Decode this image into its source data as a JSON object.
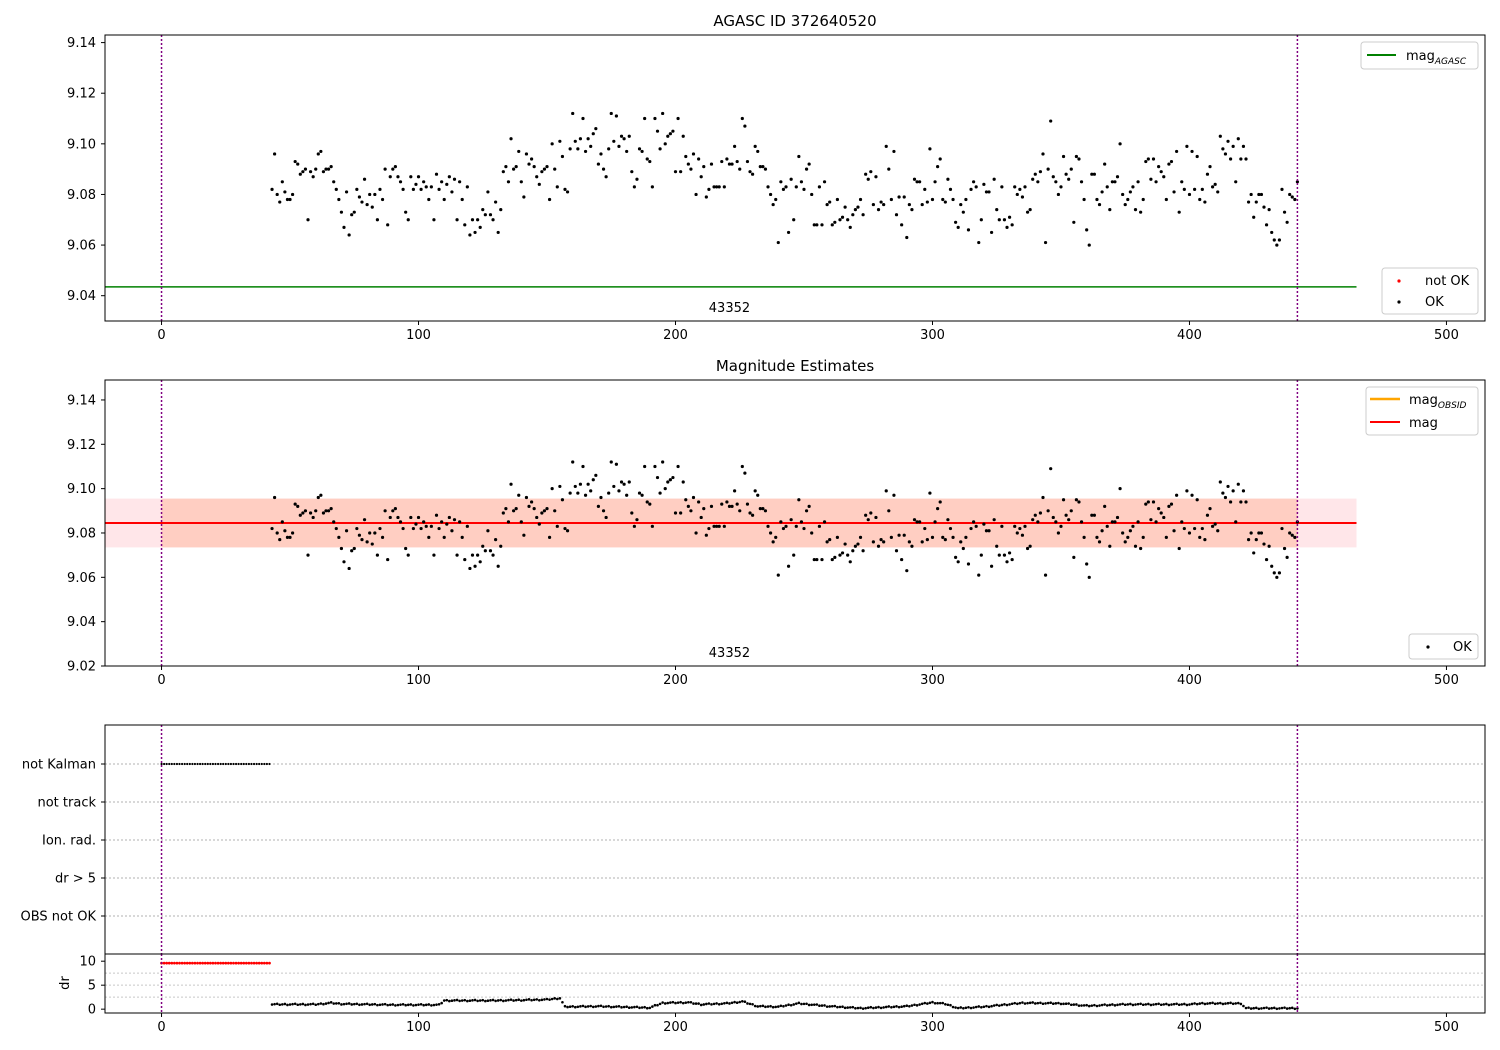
{
  "chart_data": [
    {
      "type": "scatter",
      "title": "AGASC ID 372640520",
      "xlim": [
        -22,
        515
      ],
      "ylim": [
        9.03,
        9.143
      ],
      "xticks": [
        0,
        100,
        200,
        300,
        400,
        500
      ],
      "yticks": [
        "9.04",
        "9.06",
        "9.08",
        "9.10",
        "9.12",
        "9.14"
      ],
      "ytick_values": [
        9.04,
        9.06,
        9.08,
        9.1,
        9.12,
        9.14
      ],
      "obs_boundaries": [
        0,
        442
      ],
      "obs_label": "43352",
      "obs_label_x": 221,
      "mag_agasc": 9.0435,
      "mag_agasc_xrange": [
        -22,
        465
      ],
      "legend_top": [
        "mag_AGASC"
      ],
      "legend_bottom": [
        "not OK",
        "OK"
      ],
      "grid": false,
      "colors": {
        "agasc": "#008000",
        "ok": "#000000",
        "not_ok": "#ff0000",
        "boundary": "#800080"
      }
    },
    {
      "type": "scatter",
      "title": "Magnitude Estimates",
      "xlim": [
        -22,
        515
      ],
      "ylim": [
        9.02,
        9.149
      ],
      "xticks": [
        0,
        100,
        200,
        300,
        400,
        500
      ],
      "yticks": [
        "9.02",
        "9.04",
        "9.06",
        "9.08",
        "9.10",
        "9.12",
        "9.14"
      ],
      "ytick_values": [
        9.02,
        9.04,
        9.06,
        9.08,
        9.1,
        9.12,
        9.14
      ],
      "obs_boundaries": [
        0,
        442
      ],
      "obs_label": "43352",
      "obs_label_x": 221,
      "mag": 9.0845,
      "mag_band": [
        9.0735,
        9.0955
      ],
      "mag_xrange": [
        -22,
        465
      ],
      "mag_obsid_band": [
        0,
        442
      ],
      "legend_top": [
        "mag_OBSID",
        "mag"
      ],
      "legend_bottom": [
        "OK"
      ],
      "grid": false,
      "colors": {
        "mag": "#ff0000",
        "mag_obsid": "#ffa500",
        "band_mag": "#ffb6c1",
        "band_obsid": "#ffa07a",
        "ok": "#000000"
      }
    },
    {
      "type": "scatter",
      "title": "",
      "xlim": [
        -22,
        515
      ],
      "categories": [
        "not Kalman",
        "not track",
        "Ion. rad.",
        "dr > 5",
        "OBS not OK"
      ],
      "flagged": {
        "category": "not Kalman",
        "x_range": [
          0,
          42
        ]
      },
      "grid": true
    },
    {
      "type": "scatter",
      "title": "",
      "ylabel": "dr",
      "xlim": [
        -22,
        515
      ],
      "ylim": [
        -0.8,
        11.5
      ],
      "xticks": [
        0,
        100,
        200,
        300,
        400,
        500
      ],
      "yticks": [
        "0",
        "5",
        "10"
      ],
      "ytick_values": [
        0,
        5,
        10
      ],
      "threshold": 5,
      "not_ok_range": [
        0,
        42
      ],
      "not_ok_dr": 9.6,
      "ok_range": [
        43,
        442
      ],
      "dr_profile": [
        [
          43,
          1.0
        ],
        [
          60,
          1.0
        ],
        [
          66,
          1.3
        ],
        [
          70,
          1.1
        ],
        [
          90,
          0.9
        ],
        [
          108,
          0.9
        ],
        [
          110,
          1.8
        ],
        [
          130,
          1.8
        ],
        [
          150,
          2.0
        ],
        [
          155,
          2.3
        ],
        [
          157,
          0.5
        ],
        [
          170,
          0.6
        ],
        [
          190,
          0.3
        ],
        [
          195,
          1.3
        ],
        [
          205,
          1.4
        ],
        [
          210,
          1.0
        ],
        [
          220,
          1.2
        ],
        [
          226,
          1.6
        ],
        [
          232,
          0.6
        ],
        [
          240,
          0.5
        ],
        [
          248,
          1.2
        ],
        [
          260,
          0.6
        ],
        [
          272,
          0.2
        ],
        [
          290,
          0.6
        ],
        [
          300,
          1.4
        ],
        [
          305,
          1.1
        ],
        [
          310,
          0.2
        ],
        [
          320,
          0.5
        ],
        [
          335,
          1.3
        ],
        [
          350,
          1.2
        ],
        [
          360,
          0.7
        ],
        [
          375,
          1.0
        ],
        [
          400,
          1.0
        ],
        [
          405,
          1.2
        ],
        [
          420,
          1.2
        ],
        [
          422,
          0.2
        ],
        [
          442,
          0.2
        ]
      ],
      "colors": {
        "ok": "#000000",
        "not_ok": "#ff0000",
        "boundary": "#800080"
      }
    }
  ],
  "mag_points": [
    [
      43,
      9.082
    ],
    [
      44,
      9.096
    ],
    [
      45,
      9.08
    ],
    [
      46,
      9.077
    ],
    [
      47,
      9.085
    ],
    [
      48,
      9.081
    ],
    [
      49,
      9.078
    ],
    [
      50,
      9.078
    ],
    [
      51,
      9.08
    ],
    [
      52,
      9.093
    ],
    [
      53,
      9.092
    ],
    [
      54,
      9.088
    ],
    [
      55,
      9.089
    ],
    [
      56,
      9.09
    ],
    [
      57,
      9.07
    ],
    [
      58,
      9.089
    ],
    [
      59,
      9.087
    ],
    [
      60,
      9.09
    ],
    [
      61,
      9.096
    ],
    [
      62,
      9.097
    ],
    [
      63,
      9.089
    ],
    [
      64,
      9.09
    ],
    [
      65,
      9.09
    ],
    [
      66,
      9.091
    ],
    [
      67,
      9.085
    ],
    [
      68,
      9.082
    ],
    [
      69,
      9.078
    ],
    [
      70,
      9.073
    ],
    [
      71,
      9.067
    ],
    [
      72,
      9.081
    ],
    [
      73,
      9.064
    ],
    [
      74,
      9.072
    ],
    [
      75,
      9.073
    ],
    [
      76,
      9.082
    ],
    [
      77,
      9.079
    ],
    [
      78,
      9.077
    ],
    [
      79,
      9.086
    ],
    [
      80,
      9.076
    ],
    [
      81,
      9.08
    ],
    [
      82,
      9.075
    ],
    [
      83,
      9.08
    ],
    [
      84,
      9.07
    ],
    [
      85,
      9.082
    ],
    [
      86,
      9.078
    ],
    [
      87,
      9.09
    ],
    [
      88,
      9.068
    ],
    [
      89,
      9.087
    ],
    [
      90,
      9.09
    ],
    [
      91,
      9.091
    ],
    [
      92,
      9.087
    ],
    [
      93,
      9.085
    ],
    [
      94,
      9.082
    ],
    [
      95,
      9.073
    ],
    [
      96,
      9.07
    ],
    [
      97,
      9.087
    ],
    [
      98,
      9.082
    ],
    [
      99,
      9.084
    ],
    [
      100,
      9.087
    ],
    [
      101,
      9.082
    ],
    [
      102,
      9.085
    ],
    [
      103,
      9.083
    ],
    [
      104,
      9.078
    ],
    [
      105,
      9.083
    ],
    [
      106,
      9.07
    ],
    [
      107,
      9.088
    ],
    [
      108,
      9.082
    ],
    [
      109,
      9.085
    ],
    [
      110,
      9.078
    ],
    [
      111,
      9.084
    ],
    [
      112,
      9.087
    ],
    [
      113,
      9.081
    ],
    [
      114,
      9.086
    ],
    [
      115,
      9.07
    ],
    [
      116,
      9.085
    ],
    [
      117,
      9.078
    ],
    [
      118,
      9.068
    ],
    [
      119,
      9.083
    ],
    [
      120,
      9.064
    ],
    [
      121,
      9.07
    ],
    [
      122,
      9.065
    ],
    [
      123,
      9.07
    ],
    [
      124,
      9.067
    ],
    [
      125,
      9.074
    ],
    [
      126,
      9.072
    ],
    [
      127,
      9.081
    ],
    [
      128,
      9.072
    ],
    [
      129,
      9.07
    ],
    [
      130,
      9.077
    ],
    [
      131,
      9.065
    ],
    [
      132,
      9.074
    ],
    [
      133,
      9.089
    ],
    [
      134,
      9.091
    ],
    [
      135,
      9.085
    ],
    [
      136,
      9.102
    ],
    [
      137,
      9.09
    ],
    [
      138,
      9.091
    ],
    [
      139,
      9.097
    ],
    [
      140,
      9.085
    ],
    [
      141,
      9.079
    ],
    [
      142,
      9.096
    ],
    [
      143,
      9.092
    ],
    [
      144,
      9.094
    ],
    [
      145,
      9.091
    ],
    [
      146,
      9.087
    ],
    [
      147,
      9.084
    ],
    [
      148,
      9.089
    ],
    [
      149,
      9.09
    ],
    [
      150,
      9.091
    ],
    [
      151,
      9.078
    ],
    [
      152,
      9.1
    ],
    [
      153,
      9.09
    ],
    [
      154,
      9.083
    ],
    [
      155,
      9.101
    ],
    [
      156,
      9.095
    ],
    [
      157,
      9.082
    ],
    [
      158,
      9.081
    ],
    [
      159,
      9.098
    ],
    [
      160,
      9.112
    ],
    [
      161,
      9.101
    ],
    [
      162,
      9.098
    ],
    [
      163,
      9.102
    ],
    [
      164,
      9.11
    ],
    [
      165,
      9.097
    ],
    [
      166,
      9.102
    ],
    [
      167,
      9.099
    ],
    [
      168,
      9.104
    ],
    [
      169,
      9.106
    ],
    [
      170,
      9.092
    ],
    [
      171,
      9.096
    ],
    [
      172,
      9.09
    ],
    [
      173,
      9.087
    ],
    [
      174,
      9.098
    ],
    [
      175,
      9.112
    ],
    [
      176,
      9.101
    ],
    [
      177,
      9.111
    ],
    [
      178,
      9.099
    ],
    [
      179,
      9.103
    ],
    [
      180,
      9.102
    ],
    [
      181,
      9.097
    ],
    [
      182,
      9.103
    ],
    [
      183,
      9.089
    ],
    [
      184,
      9.083
    ],
    [
      185,
      9.086
    ],
    [
      186,
      9.098
    ],
    [
      187,
      9.097
    ],
    [
      188,
      9.11
    ],
    [
      189,
      9.094
    ],
    [
      190,
      9.093
    ],
    [
      191,
      9.083
    ],
    [
      192,
      9.11
    ],
    [
      193,
      9.105
    ],
    [
      194,
      9.098
    ],
    [
      195,
      9.112
    ],
    [
      196,
      9.1
    ],
    [
      197,
      9.103
    ],
    [
      198,
      9.104
    ],
    [
      199,
      9.105
    ],
    [
      200,
      9.089
    ],
    [
      201,
      9.11
    ],
    [
      202,
      9.089
    ],
    [
      203,
      9.103
    ],
    [
      204,
      9.095
    ],
    [
      205,
      9.092
    ],
    [
      206,
      9.09
    ],
    [
      207,
      9.096
    ],
    [
      208,
      9.08
    ],
    [
      209,
      9.094
    ],
    [
      210,
      9.087
    ],
    [
      211,
      9.091
    ],
    [
      212,
      9.079
    ],
    [
      213,
      9.082
    ],
    [
      214,
      9.092
    ],
    [
      215,
      9.083
    ],
    [
      216,
      9.083
    ],
    [
      217,
      9.083
    ],
    [
      218,
      9.093
    ],
    [
      219,
      9.083
    ],
    [
      220,
      9.094
    ],
    [
      221,
      9.092
    ],
    [
      222,
      9.092
    ],
    [
      223,
      9.099
    ],
    [
      224,
      9.093
    ],
    [
      225,
      9.09
    ],
    [
      226,
      9.11
    ],
    [
      227,
      9.107
    ],
    [
      228,
      9.093
    ],
    [
      229,
      9.089
    ],
    [
      230,
      9.088
    ],
    [
      231,
      9.099
    ],
    [
      232,
      9.097
    ],
    [
      233,
      9.091
    ],
    [
      234,
      9.091
    ],
    [
      235,
      9.09
    ],
    [
      236,
      9.083
    ],
    [
      237,
      9.08
    ],
    [
      238,
      9.076
    ],
    [
      239,
      9.078
    ],
    [
      240,
      9.061
    ],
    [
      241,
      9.085
    ],
    [
      242,
      9.082
    ],
    [
      243,
      9.083
    ],
    [
      244,
      9.065
    ],
    [
      245,
      9.086
    ],
    [
      246,
      9.07
    ],
    [
      247,
      9.083
    ],
    [
      248,
      9.095
    ],
    [
      249,
      9.085
    ],
    [
      250,
      9.082
    ],
    [
      251,
      9.09
    ],
    [
      252,
      9.092
    ],
    [
      253,
      9.08
    ],
    [
      254,
      9.068
    ],
    [
      255,
      9.068
    ],
    [
      256,
      9.083
    ],
    [
      257,
      9.068
    ],
    [
      258,
      9.085
    ],
    [
      259,
      9.076
    ],
    [
      260,
      9.077
    ],
    [
      261,
      9.068
    ],
    [
      262,
      9.069
    ],
    [
      263,
      9.078
    ],
    [
      264,
      9.07
    ],
    [
      265,
      9.071
    ],
    [
      266,
      9.075
    ],
    [
      267,
      9.07
    ],
    [
      268,
      9.067
    ],
    [
      269,
      9.072
    ],
    [
      270,
      9.074
    ],
    [
      271,
      9.075
    ],
    [
      272,
      9.078
    ],
    [
      273,
      9.072
    ],
    [
      274,
      9.088
    ],
    [
      275,
      9.086
    ],
    [
      276,
      9.089
    ],
    [
      277,
      9.076
    ],
    [
      278,
      9.087
    ],
    [
      279,
      9.074
    ],
    [
      280,
      9.077
    ],
    [
      281,
      9.076
    ],
    [
      282,
      9.099
    ],
    [
      283,
      9.09
    ],
    [
      284,
      9.078
    ],
    [
      285,
      9.097
    ],
    [
      286,
      9.072
    ],
    [
      287,
      9.079
    ],
    [
      288,
      9.068
    ],
    [
      289,
      9.079
    ],
    [
      290,
      9.063
    ],
    [
      291,
      9.076
    ],
    [
      292,
      9.074
    ],
    [
      293,
      9.086
    ],
    [
      294,
      9.085
    ],
    [
      295,
      9.085
    ],
    [
      296,
      9.076
    ],
    [
      297,
      9.082
    ],
    [
      298,
      9.077
    ],
    [
      299,
      9.098
    ],
    [
      300,
      9.078
    ],
    [
      301,
      9.085
    ],
    [
      302,
      9.091
    ],
    [
      303,
      9.094
    ],
    [
      304,
      9.078
    ],
    [
      305,
      9.077
    ],
    [
      306,
      9.086
    ],
    [
      307,
      9.082
    ],
    [
      308,
      9.078
    ],
    [
      309,
      9.069
    ],
    [
      310,
      9.067
    ],
    [
      311,
      9.076
    ],
    [
      312,
      9.073
    ],
    [
      313,
      9.078
    ],
    [
      314,
      9.066
    ],
    [
      315,
      9.082
    ],
    [
      316,
      9.085
    ],
    [
      317,
      9.083
    ],
    [
      318,
      9.061
    ],
    [
      319,
      9.07
    ],
    [
      320,
      9.084
    ],
    [
      321,
      9.081
    ],
    [
      322,
      9.081
    ],
    [
      323,
      9.065
    ],
    [
      324,
      9.086
    ],
    [
      325,
      9.074
    ],
    [
      326,
      9.07
    ],
    [
      327,
      9.083
    ],
    [
      328,
      9.07
    ],
    [
      329,
      9.067
    ],
    [
      330,
      9.071
    ],
    [
      331,
      9.068
    ],
    [
      332,
      9.083
    ],
    [
      333,
      9.08
    ],
    [
      334,
      9.082
    ],
    [
      335,
      9.079
    ],
    [
      336,
      9.083
    ],
    [
      337,
      9.073
    ],
    [
      338,
      9.074
    ],
    [
      339,
      9.086
    ],
    [
      340,
      9.088
    ],
    [
      341,
      9.085
    ],
    [
      342,
      9.089
    ],
    [
      343,
      9.096
    ],
    [
      344,
      9.061
    ],
    [
      345,
      9.09
    ],
    [
      346,
      9.109
    ],
    [
      347,
      9.087
    ],
    [
      348,
      9.085
    ],
    [
      349,
      9.08
    ],
    [
      350,
      9.083
    ],
    [
      351,
      9.095
    ],
    [
      352,
      9.088
    ],
    [
      353,
      9.086
    ],
    [
      354,
      9.09
    ],
    [
      355,
      9.069
    ],
    [
      356,
      9.095
    ],
    [
      357,
      9.094
    ],
    [
      358,
      9.085
    ],
    [
      359,
      9.078
    ],
    [
      360,
      9.066
    ],
    [
      361,
      9.06
    ],
    [
      362,
      9.088
    ],
    [
      363,
      9.088
    ],
    [
      364,
      9.078
    ],
    [
      365,
      9.076
    ],
    [
      366,
      9.081
    ],
    [
      367,
      9.092
    ],
    [
      368,
      9.083
    ],
    [
      369,
      9.074
    ],
    [
      370,
      9.085
    ],
    [
      371,
      9.085
    ],
    [
      372,
      9.087
    ],
    [
      373,
      9.1
    ],
    [
      374,
      9.08
    ],
    [
      375,
      9.076
    ],
    [
      376,
      9.078
    ],
    [
      377,
      9.081
    ],
    [
      378,
      9.083
    ],
    [
      379,
      9.074
    ],
    [
      380,
      9.085
    ],
    [
      381,
      9.073
    ],
    [
      382,
      9.078
    ],
    [
      383,
      9.093
    ],
    [
      384,
      9.094
    ],
    [
      385,
      9.086
    ],
    [
      386,
      9.094
    ],
    [
      387,
      9.085
    ],
    [
      388,
      9.091
    ],
    [
      389,
      9.089
    ],
    [
      390,
      9.087
    ],
    [
      391,
      9.078
    ],
    [
      392,
      9.092
    ],
    [
      393,
      9.093
    ],
    [
      394,
      9.081
    ],
    [
      395,
      9.097
    ],
    [
      396,
      9.073
    ],
    [
      397,
      9.085
    ],
    [
      398,
      9.082
    ],
    [
      399,
      9.099
    ],
    [
      400,
      9.08
    ],
    [
      401,
      9.097
    ],
    [
      402,
      9.082
    ],
    [
      403,
      9.095
    ],
    [
      404,
      9.078
    ],
    [
      405,
      9.082
    ],
    [
      406,
      9.077
    ],
    [
      407,
      9.088
    ],
    [
      408,
      9.091
    ],
    [
      409,
      9.083
    ],
    [
      410,
      9.084
    ],
    [
      411,
      9.081
    ],
    [
      412,
      9.103
    ],
    [
      413,
      9.098
    ],
    [
      414,
      9.096
    ],
    [
      415,
      9.101
    ],
    [
      416,
      9.094
    ],
    [
      417,
      9.099
    ],
    [
      418,
      9.085
    ],
    [
      419,
      9.102
    ],
    [
      420,
      9.094
    ],
    [
      421,
      9.099
    ],
    [
      422,
      9.094
    ],
    [
      423,
      9.077
    ],
    [
      424,
      9.08
    ],
    [
      425,
      9.071
    ],
    [
      426,
      9.077
    ],
    [
      427,
      9.08
    ],
    [
      428,
      9.08
    ],
    [
      429,
      9.075
    ],
    [
      430,
      9.068
    ],
    [
      431,
      9.074
    ],
    [
      432,
      9.065
    ],
    [
      433,
      9.062
    ],
    [
      434,
      9.06
    ],
    [
      435,
      9.062
    ],
    [
      436,
      9.082
    ],
    [
      437,
      9.073
    ],
    [
      438,
      9.069
    ],
    [
      439,
      9.08
    ],
    [
      440,
      9.079
    ],
    [
      441,
      9.078
    ],
    [
      442,
      9.085
    ]
  ]
}
